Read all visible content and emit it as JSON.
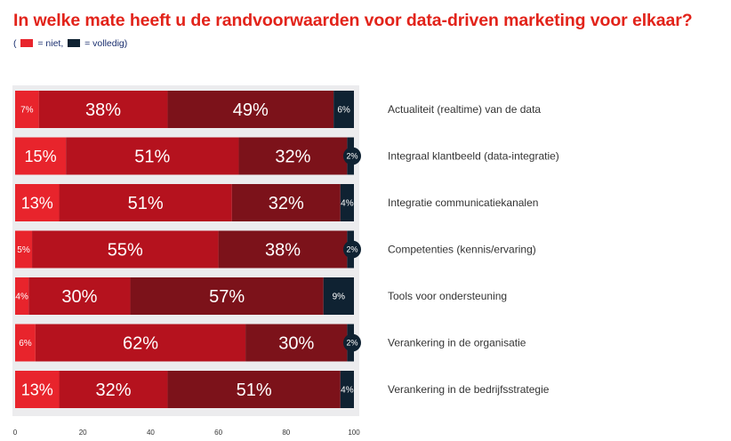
{
  "title": "In welke mate heeft u de randvoorwaarden voor data-driven marketing voor elkaar?",
  "legend": {
    "open": "(",
    "niet_label": "= niet,",
    "volledig_label": "= volledig)",
    "niet_color": "#e8242c",
    "volledig_color": "#0f2232"
  },
  "chart_data": {
    "type": "bar",
    "orientation": "horizontal",
    "stacked": true,
    "categories": [
      "Actualiteit (realtime) van de data",
      "Integraal klantbeeld (data-integratie)",
      "Integratie communicatiekanalen",
      "Competenties (kennis/ervaring)",
      "Tools voor ondersteuning",
      "Verankering in de organisatie",
      "Verankering in de bedrijfsstrategie"
    ],
    "series": [
      {
        "name": "niet",
        "color": "#e8242c",
        "values": [
          7,
          15,
          13,
          5,
          4,
          6,
          13
        ]
      },
      {
        "color": "#b5121e",
        "values": [
          38,
          51,
          51,
          55,
          30,
          62,
          32
        ]
      },
      {
        "color": "#7c121a",
        "values": [
          49,
          32,
          32,
          38,
          57,
          30,
          51
        ]
      },
      {
        "name": "volledig",
        "color": "#0f2232",
        "values": [
          6,
          2,
          4,
          2,
          9,
          2,
          4
        ]
      }
    ],
    "x_ticks": [
      0,
      20,
      40,
      60,
      80,
      100
    ],
    "xlim": [
      0,
      100
    ]
  }
}
